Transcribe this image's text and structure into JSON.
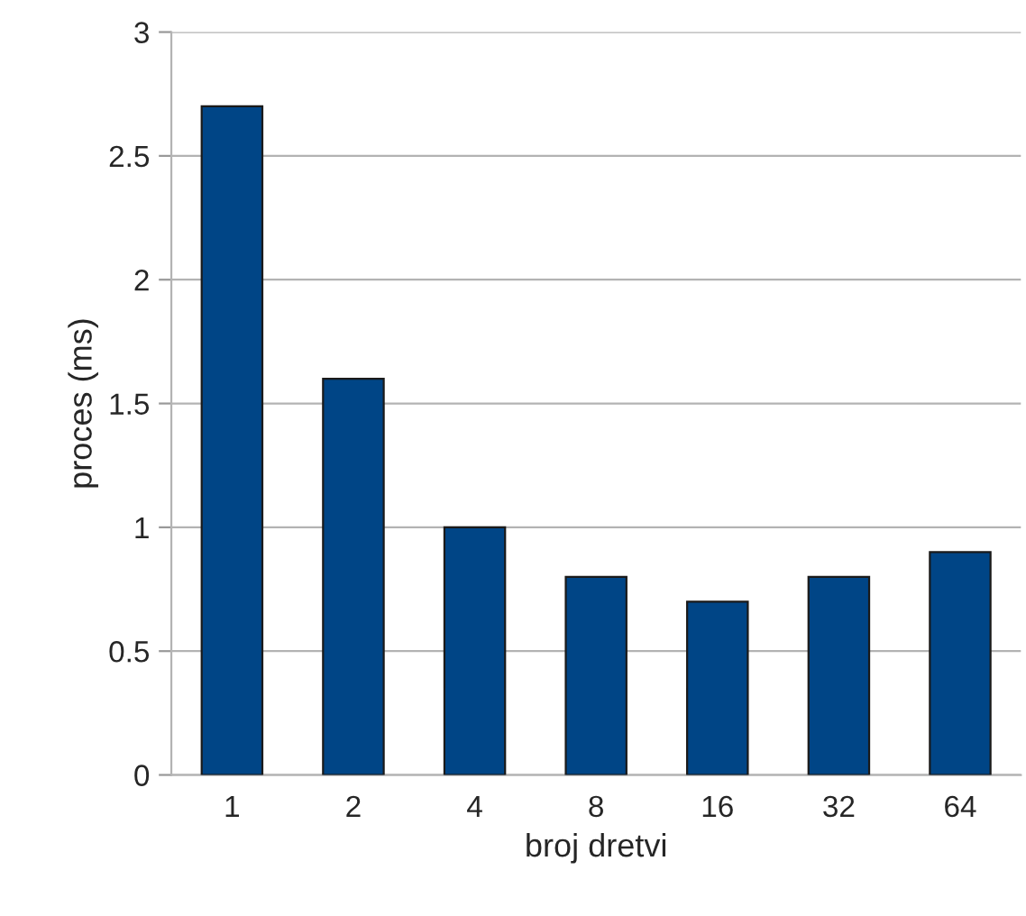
{
  "chart_data": {
    "type": "bar",
    "xlabel": "broj dretvi",
    "ylabel": "proces (ms)",
    "categories": [
      "1",
      "2",
      "4",
      "8",
      "16",
      "32",
      "64"
    ],
    "values": [
      2.7,
      1.6,
      1.0,
      0.8,
      0.7,
      0.8,
      0.9
    ],
    "color": "#004586",
    "ylim": [
      0,
      3
    ],
    "yticks": [
      0,
      0.5,
      1,
      1.5,
      2,
      2.5,
      3
    ],
    "grid": "y"
  }
}
